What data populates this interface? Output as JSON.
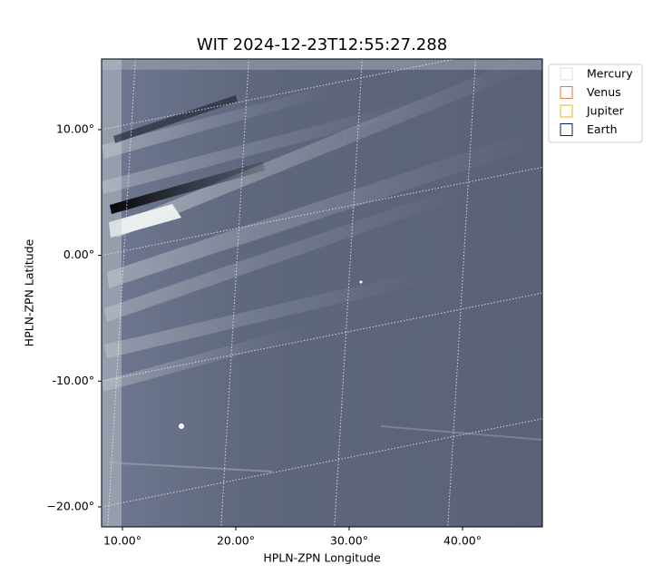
{
  "chart_data": {
    "type": "image",
    "title": "WIT 2024-12-23T12:55:27.288",
    "x_label": "HPLN-ZPN Longitude",
    "y_label": "HPLN-ZPN Latitude",
    "xlim": [
      8.16,
      47.04
    ],
    "ylim": [
      -21.59,
      15.62
    ],
    "xticks": [
      {
        "value": 10,
        "label": "10.00°"
      },
      {
        "value": 20,
        "label": "20.00°"
      },
      {
        "value": 30,
        "label": "30.00°"
      },
      {
        "value": 40,
        "label": "40.00°"
      }
    ],
    "yticks": [
      {
        "value": 10,
        "label": "10.00°"
      },
      {
        "value": 0,
        "label": "0.00°"
      },
      {
        "value": -10,
        "label": "-10.00°"
      },
      {
        "value": -20,
        "label": "−20.00°"
      }
    ],
    "grid": true,
    "legend": {
      "position": "outside upper right",
      "entries": [
        {
          "name": "Mercury",
          "color": "#dddddd"
        },
        {
          "name": "Venus",
          "color": "#e07b39"
        },
        {
          "name": "Jupiter",
          "color": "#e6b422"
        },
        {
          "name": "Earth",
          "color": "#1a1a6e"
        }
      ]
    }
  }
}
